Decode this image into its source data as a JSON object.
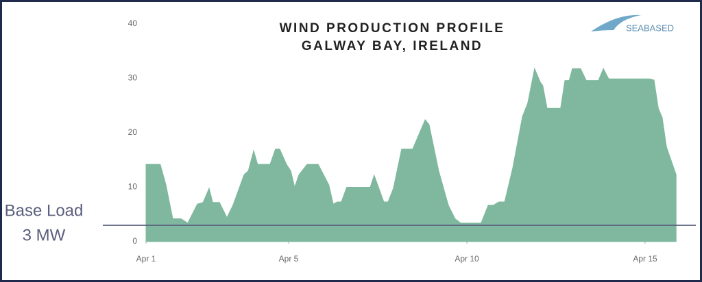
{
  "chart_data": {
    "type": "area",
    "title": [
      "WIND PRODUCTION PROFILE",
      "GALWAY BAY, IRELAND"
    ],
    "logo": "SEABASED",
    "color": "#7fb89e",
    "x": [
      1.0,
      1.4,
      1.56,
      1.75,
      1.98,
      2.17,
      2.44,
      2.6,
      2.77,
      2.87,
      3.06,
      3.27,
      3.44,
      3.75,
      3.87,
      4.02,
      4.13,
      4.48,
      4.63,
      4.75,
      4.94,
      5.06,
      5.17,
      5.29,
      5.52,
      5.83,
      6.13,
      6.25,
      6.37,
      6.48,
      6.63,
      7.29,
      7.4,
      7.67,
      7.79,
      7.94,
      8.17,
      8.48,
      8.83,
      8.94,
      9.21,
      9.48,
      9.67,
      9.83,
      10.4,
      10.6,
      10.75,
      10.9,
      11.06,
      11.29,
      11.56,
      11.71,
      11.9,
      12.06,
      12.13,
      12.25,
      12.63,
      12.75,
      12.87,
      12.96,
      13.19,
      13.35,
      13.69,
      13.83,
      13.98,
      15.13,
      15.25,
      15.37,
      15.48,
      15.6,
      15.87
    ],
    "values": [
      14.2,
      14.2,
      10.4,
      4.2,
      4.2,
      3.4,
      6.9,
      7.2,
      9.8,
      7.2,
      7.2,
      4.4,
      6.7,
      12.3,
      13,
      16.7,
      14.2,
      14.2,
      17,
      17,
      14.2,
      13,
      10,
      12.3,
      14.2,
      14.2,
      10.4,
      6.9,
      7.3,
      7.3,
      10,
      10,
      12.2,
      7.3,
      7.3,
      9.8,
      17,
      17,
      22.4,
      21.5,
      13,
      6.7,
      4.2,
      3.4,
      3.4,
      6.7,
      6.7,
      7.3,
      7.3,
      13.6,
      23,
      25.5,
      31.8,
      29.3,
      28.7,
      24.5,
      24.5,
      29.6,
      29.6,
      31.8,
      31.8,
      29.6,
      29.6,
      31.8,
      29.9,
      29.9,
      29.7,
      24.5,
      22.8,
      17.4,
      12.3
    ],
    "xlim": [
      1,
      16.5
    ],
    "xticks": [
      {
        "value": 1,
        "label": "Apr 1"
      },
      {
        "value": 5,
        "label": "Apr 5"
      },
      {
        "value": 10,
        "label": "Apr 10"
      },
      {
        "value": 15,
        "label": "Apr 15"
      }
    ],
    "ylim": [
      0,
      40
    ],
    "yticks": [
      0,
      10,
      20,
      30,
      40
    ],
    "baseline": {
      "value": 3,
      "label": [
        "Base Load",
        "3 MW"
      ],
      "color": "#5a5f7d"
    }
  }
}
